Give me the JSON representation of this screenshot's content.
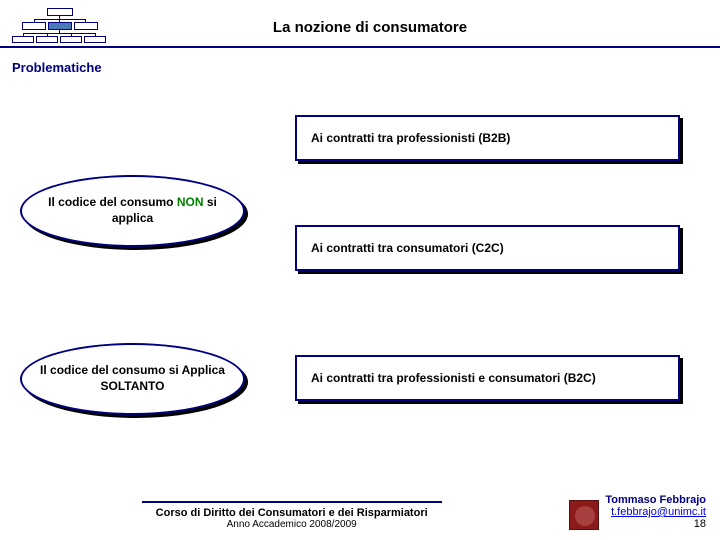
{
  "header": {
    "title": "La nozione di consumatore"
  },
  "section_label": "Problematiche",
  "ellipses": [
    {
      "text_pre": "Il codice del consumo ",
      "text_emph": "NON",
      "text_post": " si applica"
    },
    {
      "text_pre": "Il codice del consumo si Applica SOLTANTO",
      "text_emph": "",
      "text_post": ""
    }
  ],
  "rects": [
    {
      "text": "Ai contratti tra professionisti (B2B)"
    },
    {
      "text": "Ai contratti tra consumatori (C2C)"
    },
    {
      "text": "Ai contratti tra professionisti e consumatori (B2C)"
    }
  ],
  "footer": {
    "course": "Corso di Diritto dei Consumatori e dei Risparmiatori",
    "year": "Anno Accademico 2008/2009",
    "author": "Tommaso Febbrajo",
    "email": "t.febbrajo@unimc.it",
    "page": "18"
  },
  "colors": {
    "primary": "#000080",
    "emph": "#008000",
    "link": "#0000ee",
    "logo": "#8b1a1a"
  }
}
